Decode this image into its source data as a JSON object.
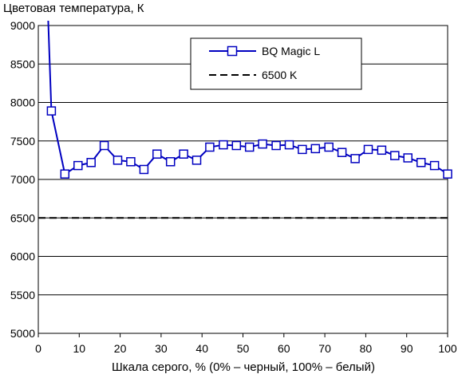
{
  "chart_data": {
    "type": "line",
    "title": "Цветовая температура, К",
    "xlabel": "Шкала серого, % (0% – черный, 100% – белый)",
    "ylabel": "",
    "xlim": [
      0,
      100
    ],
    "ylim": [
      5000,
      9000
    ],
    "x_ticks": [
      "0",
      "10",
      "20",
      "30",
      "40",
      "50",
      "60",
      "70",
      "80",
      "90",
      "100"
    ],
    "y_ticks": [
      "5000",
      "5500",
      "6000",
      "6500",
      "7000",
      "7500",
      "8000",
      "8500",
      "9000"
    ],
    "grid": "horizontal",
    "legend_position": "top-right",
    "series": [
      {
        "name": "BQ Magic L",
        "style": "solid-line-square-markers",
        "color": "#0000c0",
        "x": [
          3.2,
          6.5,
          9.7,
          12.9,
          16.1,
          19.4,
          22.6,
          25.8,
          29.0,
          32.3,
          35.5,
          38.7,
          41.9,
          45.2,
          48.4,
          51.6,
          54.8,
          58.1,
          61.3,
          64.5,
          67.7,
          71.0,
          74.2,
          77.4,
          80.6,
          83.9,
          87.1,
          90.3,
          93.5,
          96.8,
          100
        ],
        "y": [
          7890,
          7070,
          7180,
          7220,
          7440,
          7250,
          7230,
          7130,
          7330,
          7230,
          7330,
          7250,
          7420,
          7450,
          7440,
          7420,
          7460,
          7440,
          7450,
          7390,
          7400,
          7420,
          7350,
          7270,
          7390,
          7380,
          7310,
          7280,
          7220,
          7180,
          7070
        ],
        "offscale_start": {
          "x": 2.4,
          "y": 9100
        }
      },
      {
        "name": "6500 K",
        "style": "dashed-line",
        "color": "#000000",
        "x": [
          0,
          100
        ],
        "y": [
          6500,
          6500
        ]
      }
    ]
  }
}
